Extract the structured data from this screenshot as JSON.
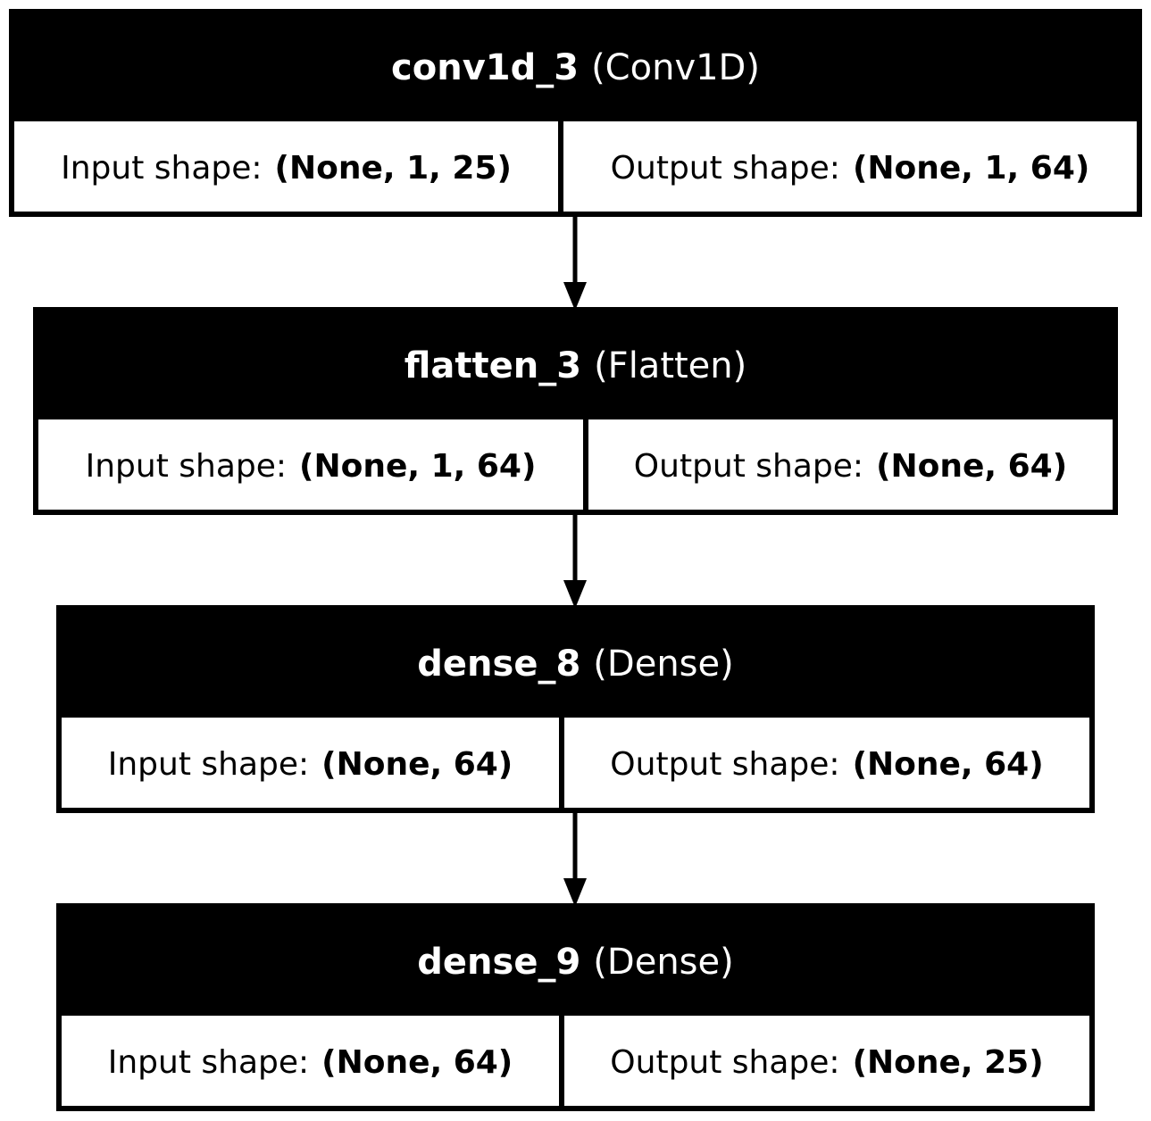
{
  "input_label": "Input shape:",
  "output_label": "Output shape:",
  "layers": [
    {
      "name": "conv1d_3",
      "type": "(Conv1D)",
      "input": "(None, 1, 25)",
      "output": "(None, 1, 64)"
    },
    {
      "name": "flatten_3",
      "type": "(Flatten)",
      "input": "(None, 1, 64)",
      "output": "(None, 64)"
    },
    {
      "name": "dense_8",
      "type": "(Dense)",
      "input": "(None, 64)",
      "output": "(None, 64)"
    },
    {
      "name": "dense_9",
      "type": "(Dense)",
      "input": "(None, 64)",
      "output": "(None, 25)"
    }
  ],
  "colors": {
    "header_bg": "#000000",
    "header_text": "#ffffff",
    "border": "#000000",
    "background": "#ffffff"
  }
}
